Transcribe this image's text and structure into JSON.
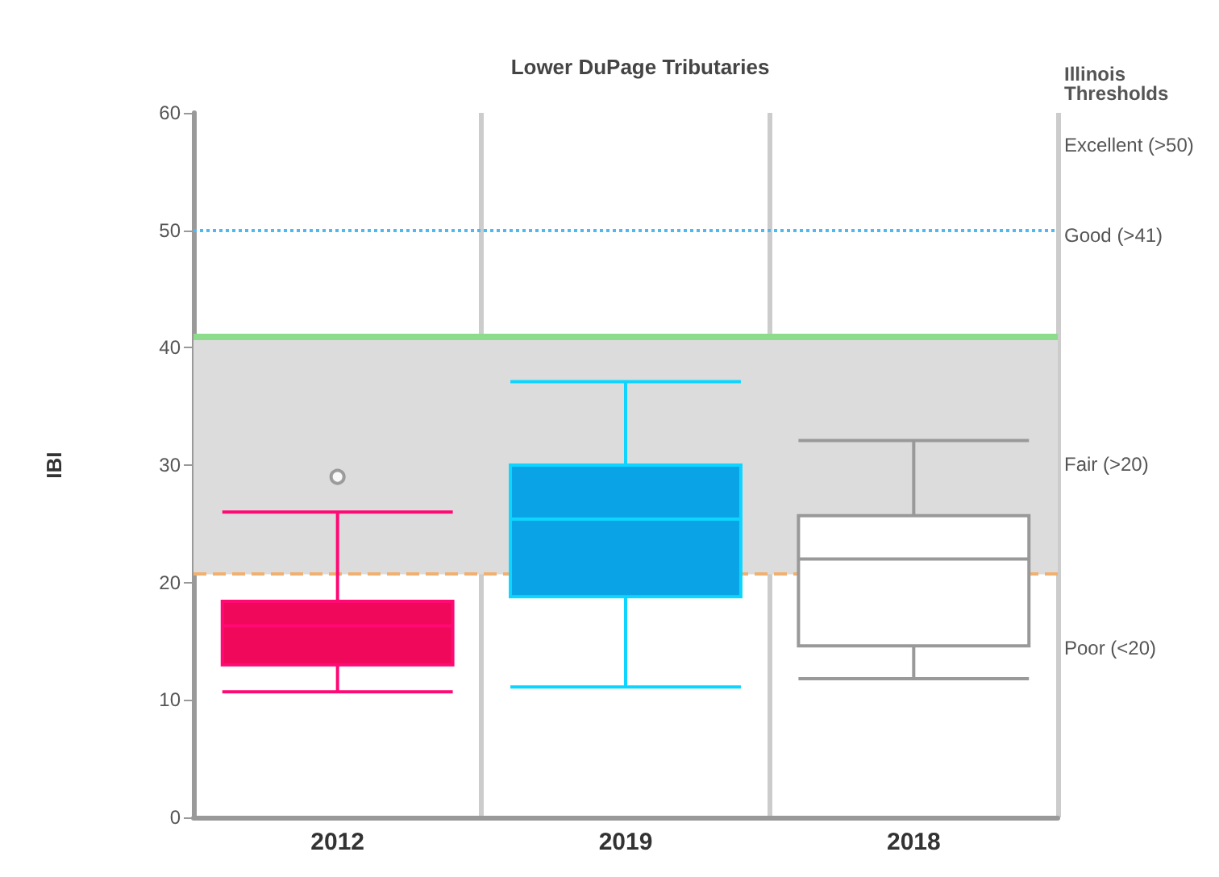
{
  "chart_data": {
    "type": "box",
    "title": "Lower DuPage Tributaries",
    "ylabel": "IBI",
    "categories": [
      "2012",
      "2019",
      "2018"
    ],
    "boxes": [
      {
        "low": 10.7,
        "q1": 13,
        "median": 16.3,
        "q3": 18.4,
        "high": 26,
        "outliers": [
          29
        ]
      },
      {
        "low": 11.1,
        "q1": 18.8,
        "median": 25.4,
        "q3": 30,
        "high": 37.1
      },
      {
        "low": 11.8,
        "q1": 14.6,
        "median": 22,
        "q3": 25.7,
        "high": 32.1
      }
    ],
    "colors": [
      "#f0085a",
      "#0aa4e6",
      "#ffffff"
    ],
    "ylim": [
      0,
      60
    ],
    "yticks": [
      0,
      10,
      20,
      30,
      40,
      50,
      60
    ],
    "grid": "x",
    "ref_lines": [
      {
        "axis": "y",
        "value": 50,
        "color": "#4fb8f0",
        "line_style": "dotted"
      },
      {
        "axis": "y",
        "value": 41,
        "color": "#8cdc8c",
        "line_style": "solid"
      },
      {
        "axis": "y",
        "value": 20.7,
        "color": "#f0b070",
        "line_style": "dashed"
      }
    ],
    "bands": [
      {
        "axis": "y",
        "from": 20.7,
        "to": 41,
        "color": "#dcdcdc"
      }
    ],
    "annotations": [
      "Illinois Thresholds",
      "Excellent (>50)",
      "Good (>41)",
      "Fair (>20)",
      "Poor (<20)"
    ]
  }
}
